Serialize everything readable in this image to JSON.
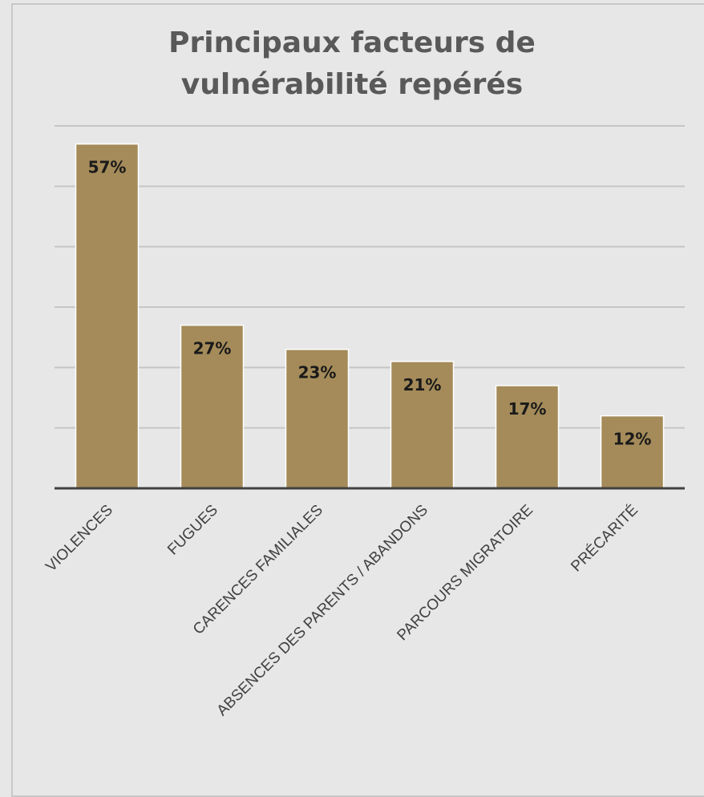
{
  "chart_data": {
    "type": "bar",
    "title_lines": [
      "Principaux facteurs de",
      "vulnérabilité repérés"
    ],
    "categories": [
      "VIOLENCES",
      "FUGUES",
      "CARENCES FAMILIALES",
      "ABSENCES DES PARENTS / ABANDONS",
      "PARCOURS MIGRATOIRE",
      "PRÉCARITÉ"
    ],
    "values": [
      57,
      27,
      23,
      21,
      17,
      12
    ],
    "data_labels": [
      "57%",
      "27%",
      "23%",
      "21%",
      "17%",
      "12%"
    ],
    "ylim": [
      0,
      60
    ],
    "grid": true,
    "legend": "none",
    "colors": {
      "bar": "#a48b59",
      "bar_edge": "#ffffff",
      "grid": "#c6c6c6",
      "axis": "#404040",
      "background": "#e7e7e7"
    }
  }
}
